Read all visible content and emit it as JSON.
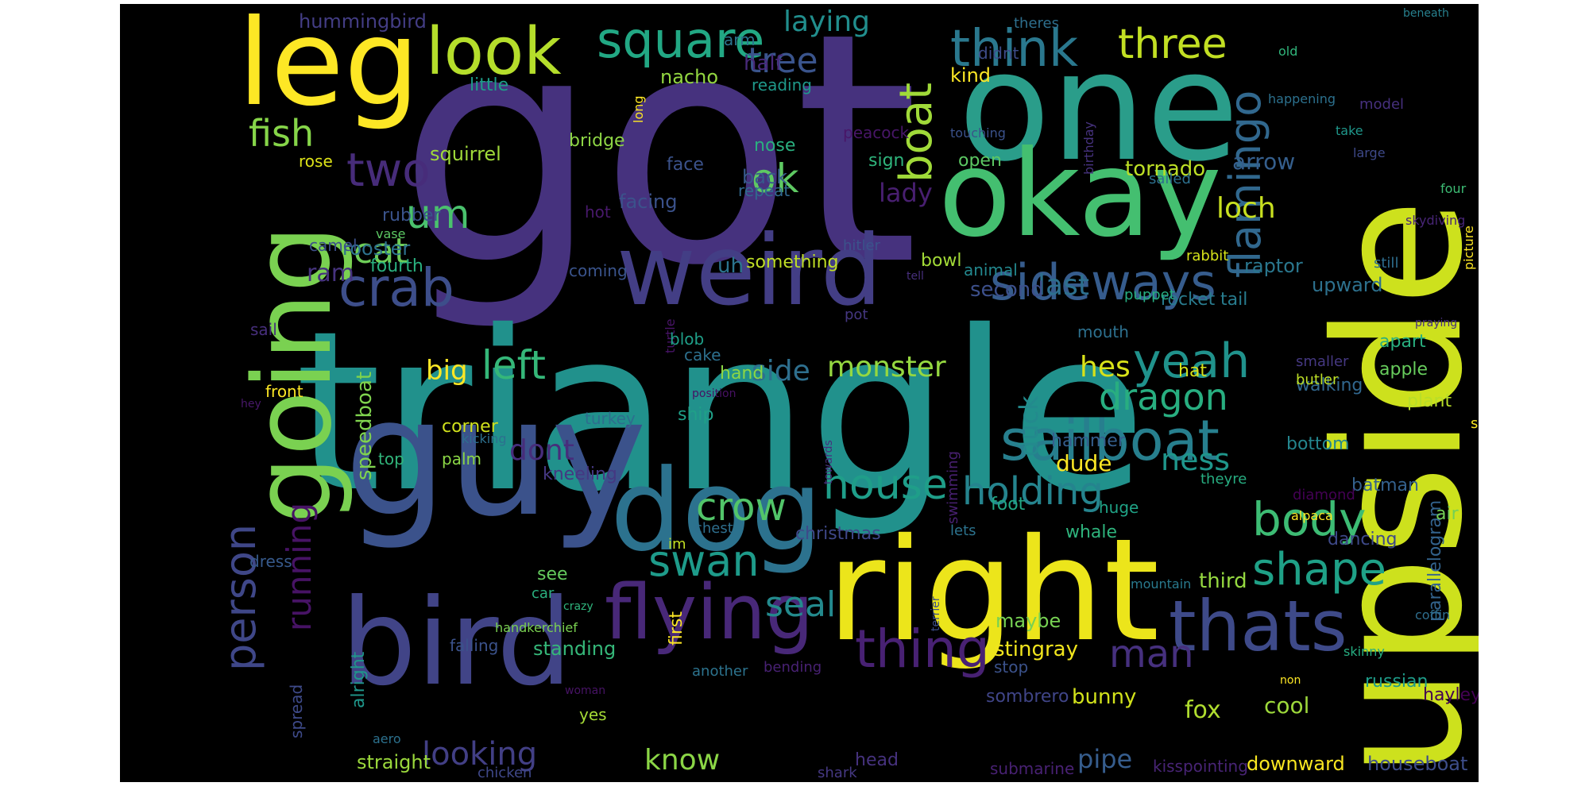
{
  "background": "#000000",
  "colormap": "viridis",
  "words": [
    {
      "text": "got",
      "color": "#46327e"
    },
    {
      "text": "triangle",
      "color": "#21918c"
    },
    {
      "text": "one",
      "color": "#2a9d8a"
    },
    {
      "text": "upside",
      "color": "#cde11d"
    },
    {
      "text": "right",
      "color": "#ece51b"
    },
    {
      "text": "okay",
      "color": "#44bf70"
    },
    {
      "text": "guy",
      "color": "#3b528b"
    },
    {
      "text": "dog",
      "color": "#2c728e"
    },
    {
      "text": "weird",
      "color": "#433e85"
    },
    {
      "text": "bird",
      "color": "#414487"
    },
    {
      "text": "leg",
      "color": "#fde725"
    },
    {
      "text": "going",
      "color": "#7ad151"
    },
    {
      "text": "look",
      "color": "#b5de2b"
    },
    {
      "text": "square",
      "color": "#22a884"
    },
    {
      "text": "think",
      "color": "#2a788e"
    },
    {
      "text": "three",
      "color": "#c2df23"
    },
    {
      "text": "flying",
      "color": "#482878"
    },
    {
      "text": "thats",
      "color": "#3e4a89"
    },
    {
      "text": "sailboat",
      "color": "#277f8e"
    },
    {
      "text": "sideways",
      "color": "#365c8d"
    },
    {
      "text": "boat",
      "color": "#a0da39"
    },
    {
      "text": "flamingo",
      "color": "#31688e"
    },
    {
      "text": "crab",
      "color": "#3d4e8a"
    },
    {
      "text": "two",
      "color": "#472c7a"
    },
    {
      "text": "ok",
      "color": "#5ec962"
    },
    {
      "text": "um",
      "color": "#4ac16d"
    },
    {
      "text": "cat",
      "color": "#6ece58"
    },
    {
      "text": "fish",
      "color": "#86d549"
    },
    {
      "text": "yeah",
      "color": "#20928c"
    },
    {
      "text": "dragon",
      "color": "#28ae80"
    },
    {
      "text": "house",
      "color": "#1f9e89"
    },
    {
      "text": "holding",
      "color": "#25848e"
    },
    {
      "text": "body",
      "color": "#3dbc74"
    },
    {
      "text": "shape",
      "color": "#1fa187"
    },
    {
      "text": "person",
      "color": "#3f4788"
    },
    {
      "text": "running",
      "color": "#471365"
    },
    {
      "text": "swan",
      "color": "#1e9b8a"
    },
    {
      "text": "crow",
      "color": "#52c569"
    },
    {
      "text": "left",
      "color": "#35b779"
    },
    {
      "text": "thing",
      "color": "#482173"
    },
    {
      "text": "man",
      "color": "#46307e"
    },
    {
      "text": "seal",
      "color": "#238a8d"
    },
    {
      "text": "monster",
      "color": "#95d840"
    },
    {
      "text": "laying",
      "color": "#218e8d"
    },
    {
      "text": "tree",
      "color": "#3a548c"
    },
    {
      "text": "hummingbird",
      "color": "#433d84"
    },
    {
      "text": "lady",
      "color": "#481f70"
    },
    {
      "text": "loch",
      "color": "#c8e020"
    },
    {
      "text": "last",
      "color": "#2d708e"
    },
    {
      "text": "hes",
      "color": "#d8e219"
    },
    {
      "text": "ness",
      "color": "#1f968b"
    },
    {
      "text": "duck",
      "color": "#238a8d"
    },
    {
      "text": "big",
      "color": "#fde725"
    },
    {
      "text": "side",
      "color": "#2e6f8e"
    },
    {
      "text": "dont",
      "color": "#472d7b"
    },
    {
      "text": "looking",
      "color": "#423f85"
    },
    {
      "text": "know",
      "color": "#8bd646"
    },
    {
      "text": "pipe",
      "color": "#365d8d"
    },
    {
      "text": "fox",
      "color": "#b0dd2f"
    },
    {
      "text": "cool",
      "color": "#9dd93b"
    },
    {
      "text": "bunny",
      "color": "#d2e21b"
    },
    {
      "text": "stingray",
      "color": "#f1e51d"
    },
    {
      "text": "houseboat",
      "color": "#3d4d8a"
    },
    {
      "text": "downward",
      "color": "#f8e621"
    },
    {
      "text": "kisspointing",
      "color": "#482475"
    },
    {
      "text": "russian",
      "color": "#1e9c89"
    },
    {
      "text": "hayley",
      "color": "#440154"
    },
    {
      "text": "parallelogram",
      "color": "#33638d"
    },
    {
      "text": "tornado",
      "color": "#bddf26"
    },
    {
      "text": "arrow",
      "color": "#355f8d"
    },
    {
      "text": "second",
      "color": "#3c4f8a"
    },
    {
      "text": "raptor",
      "color": "#2a778e"
    },
    {
      "text": "upward",
      "color": "#2d718e"
    },
    {
      "text": "rocket",
      "color": "#297b8e"
    },
    {
      "text": "tail",
      "color": "#287c8e"
    },
    {
      "text": "apart",
      "color": "#29af7f"
    },
    {
      "text": "apple",
      "color": "#67cc5c"
    },
    {
      "text": "walking",
      "color": "#31678e"
    },
    {
      "text": "plant",
      "color": "#b8de29"
    },
    {
      "text": "say",
      "color": "#fbe723"
    },
    {
      "text": "bottom",
      "color": "#24868e"
    },
    {
      "text": "batman",
      "color": "#34618d"
    },
    {
      "text": "air",
      "color": "#73d056"
    },
    {
      "text": "dancing",
      "color": "#3e4989"
    },
    {
      "text": "third",
      "color": "#95d840"
    },
    {
      "text": "maybe",
      "color": "#77d153"
    },
    {
      "text": "stop",
      "color": "#3b528b"
    },
    {
      "text": "sombrero",
      "color": "#404588"
    },
    {
      "text": "dude",
      "color": "#fde725"
    },
    {
      "text": "hammer",
      "color": "#355e8d"
    },
    {
      "text": "huge",
      "color": "#20a386"
    },
    {
      "text": "whale",
      "color": "#2eb37c"
    },
    {
      "text": "foot",
      "color": "#22a785"
    },
    {
      "text": "christmas",
      "color": "#3f4889"
    },
    {
      "text": "square2",
      "color": "#22a884"
    },
    {
      "text": "speedboat",
      "color": "#7fd34e"
    },
    {
      "text": "fourth",
      "color": "#2ab07f"
    },
    {
      "text": "ram",
      "color": "#46337e"
    },
    {
      "text": "rooster",
      "color": "#2d718e"
    },
    {
      "text": "rubber",
      "color": "#3a538b"
    },
    {
      "text": "camel",
      "color": "#3c4f8a"
    },
    {
      "text": "squirrel",
      "color": "#9fda3a"
    },
    {
      "text": "rose",
      "color": "#dde318"
    },
    {
      "text": "bridge",
      "color": "#8ed645"
    },
    {
      "text": "little",
      "color": "#1e9d89"
    },
    {
      "text": "nacho",
      "color": "#93d741"
    },
    {
      "text": "half",
      "color": "#482979"
    },
    {
      "text": "arm",
      "color": "#2c738e"
    },
    {
      "text": "reading",
      "color": "#1f998a"
    },
    {
      "text": "kind",
      "color": "#fde725"
    },
    {
      "text": "didnt",
      "color": "#3e4c8a"
    },
    {
      "text": "theres",
      "color": "#2e6f8e"
    },
    {
      "text": "beneath",
      "color": "#27808e"
    },
    {
      "text": "old",
      "color": "#31b57b"
    },
    {
      "text": "peacock",
      "color": "#481668"
    },
    {
      "text": "nose",
      "color": "#2ab07f"
    },
    {
      "text": "touching",
      "color": "#3b528b"
    },
    {
      "text": "take",
      "color": "#1f978b"
    },
    {
      "text": "large",
      "color": "#3e4989"
    },
    {
      "text": "sailed",
      "color": "#2d708e"
    },
    {
      "text": "four",
      "color": "#3dbc74"
    },
    {
      "text": "skydiving",
      "color": "#482576"
    },
    {
      "text": "picture",
      "color": "#fde725"
    },
    {
      "text": "praying",
      "color": "#472f7d"
    },
    {
      "text": "happening",
      "color": "#2c718e"
    },
    {
      "text": "model",
      "color": "#46307e"
    },
    {
      "text": "birthday",
      "color": "#46327e"
    },
    {
      "text": "long",
      "color": "#fde725"
    },
    {
      "text": "face",
      "color": "#3b528b"
    },
    {
      "text": "back",
      "color": "#38598c"
    },
    {
      "text": "repeat",
      "color": "#31688e"
    },
    {
      "text": "sign",
      "color": "#2fb47c"
    },
    {
      "text": "open",
      "color": "#5cc863"
    },
    {
      "text": "facing",
      "color": "#3b528b"
    },
    {
      "text": "hot",
      "color": "#48196b"
    },
    {
      "text": "vase",
      "color": "#5cc863"
    },
    {
      "text": "coming",
      "color": "#3a548c"
    },
    {
      "text": "hitler",
      "color": "#3b528b"
    },
    {
      "text": "bowl",
      "color": "#a2da37"
    },
    {
      "text": "tell",
      "color": "#472f7d"
    },
    {
      "text": "animal",
      "color": "#23888e"
    },
    {
      "text": "rabbit",
      "color": "#d5e21a"
    },
    {
      "text": "puppet",
      "color": "#26ad81"
    },
    {
      "text": "still",
      "color": "#2e6e8e"
    },
    {
      "text": "something",
      "color": "#c0df25"
    },
    {
      "text": "uh",
      "color": "#2b748e"
    },
    {
      "text": "turtle",
      "color": "#481467"
    },
    {
      "text": "pot",
      "color": "#453781"
    },
    {
      "text": "sail",
      "color": "#472f7d"
    },
    {
      "text": "blob",
      "color": "#1f9f88"
    },
    {
      "text": "cake",
      "color": "#2d708e"
    },
    {
      "text": "hand",
      "color": "#8cd645"
    },
    {
      "text": "mouth",
      "color": "#2d708e"
    },
    {
      "text": "hat",
      "color": "#d8e219"
    },
    {
      "text": "smaller",
      "color": "#453882"
    },
    {
      "text": "butler",
      "color": "#bddf26"
    },
    {
      "text": "front",
      "color": "#fde725"
    },
    {
      "text": "hey",
      "color": "#48186a"
    },
    {
      "text": "position",
      "color": "#471164"
    },
    {
      "text": "kicking",
      "color": "#2d708e"
    },
    {
      "text": "ship",
      "color": "#1fa088"
    },
    {
      "text": "corner",
      "color": "#d0e11c"
    },
    {
      "text": "turkey",
      "color": "#2e6e8e"
    },
    {
      "text": "top",
      "color": "#31b57b"
    },
    {
      "text": "palm",
      "color": "#8bd646"
    },
    {
      "text": "kneeling",
      "color": "#453882"
    },
    {
      "text": "towards",
      "color": "#472f7d"
    },
    {
      "text": "swimming",
      "color": "#482071"
    },
    {
      "text": "theyre",
      "color": "#27ad81"
    },
    {
      "text": "diamond",
      "color": "#440154"
    },
    {
      "text": "alpaca",
      "color": "#fde725"
    },
    {
      "text": "lets",
      "color": "#2c738e"
    },
    {
      "text": "chest",
      "color": "#2e6f8e"
    },
    {
      "text": "im",
      "color": "#c2df23"
    },
    {
      "text": "dress",
      "color": "#375a8c"
    },
    {
      "text": "car",
      "color": "#2ab07f"
    },
    {
      "text": "crazy",
      "color": "#2fb47c"
    },
    {
      "text": "handkerchief",
      "color": "#7ad151"
    },
    {
      "text": "first",
      "color": "#fde725"
    },
    {
      "text": "see",
      "color": "#65cb5e"
    },
    {
      "text": "alright",
      "color": "#1f978b"
    },
    {
      "text": "falling",
      "color": "#3b528b"
    },
    {
      "text": "standing",
      "color": "#35b779"
    },
    {
      "text": "spread",
      "color": "#3e4a89"
    },
    {
      "text": "another",
      "color": "#2c738e"
    },
    {
      "text": "bending",
      "color": "#482173"
    },
    {
      "text": "woman",
      "color": "#471365"
    },
    {
      "text": "yes",
      "color": "#a5db36"
    },
    {
      "text": "aero",
      "color": "#2c718e"
    },
    {
      "text": "straight",
      "color": "#9bd93c"
    },
    {
      "text": "chicken",
      "color": "#3f4889"
    },
    {
      "text": "head",
      "color": "#46327e"
    },
    {
      "text": "shark",
      "color": "#453882"
    },
    {
      "text": "submarine",
      "color": "#482173"
    },
    {
      "text": "mountain",
      "color": "#297a8e"
    },
    {
      "text": "terrier",
      "color": "#3d4e8a"
    },
    {
      "text": "skinny",
      "color": "#26ad81"
    },
    {
      "text": "coffin",
      "color": "#2e6e8e"
    },
    {
      "text": "non",
      "color": "#fde725"
    }
  ]
}
